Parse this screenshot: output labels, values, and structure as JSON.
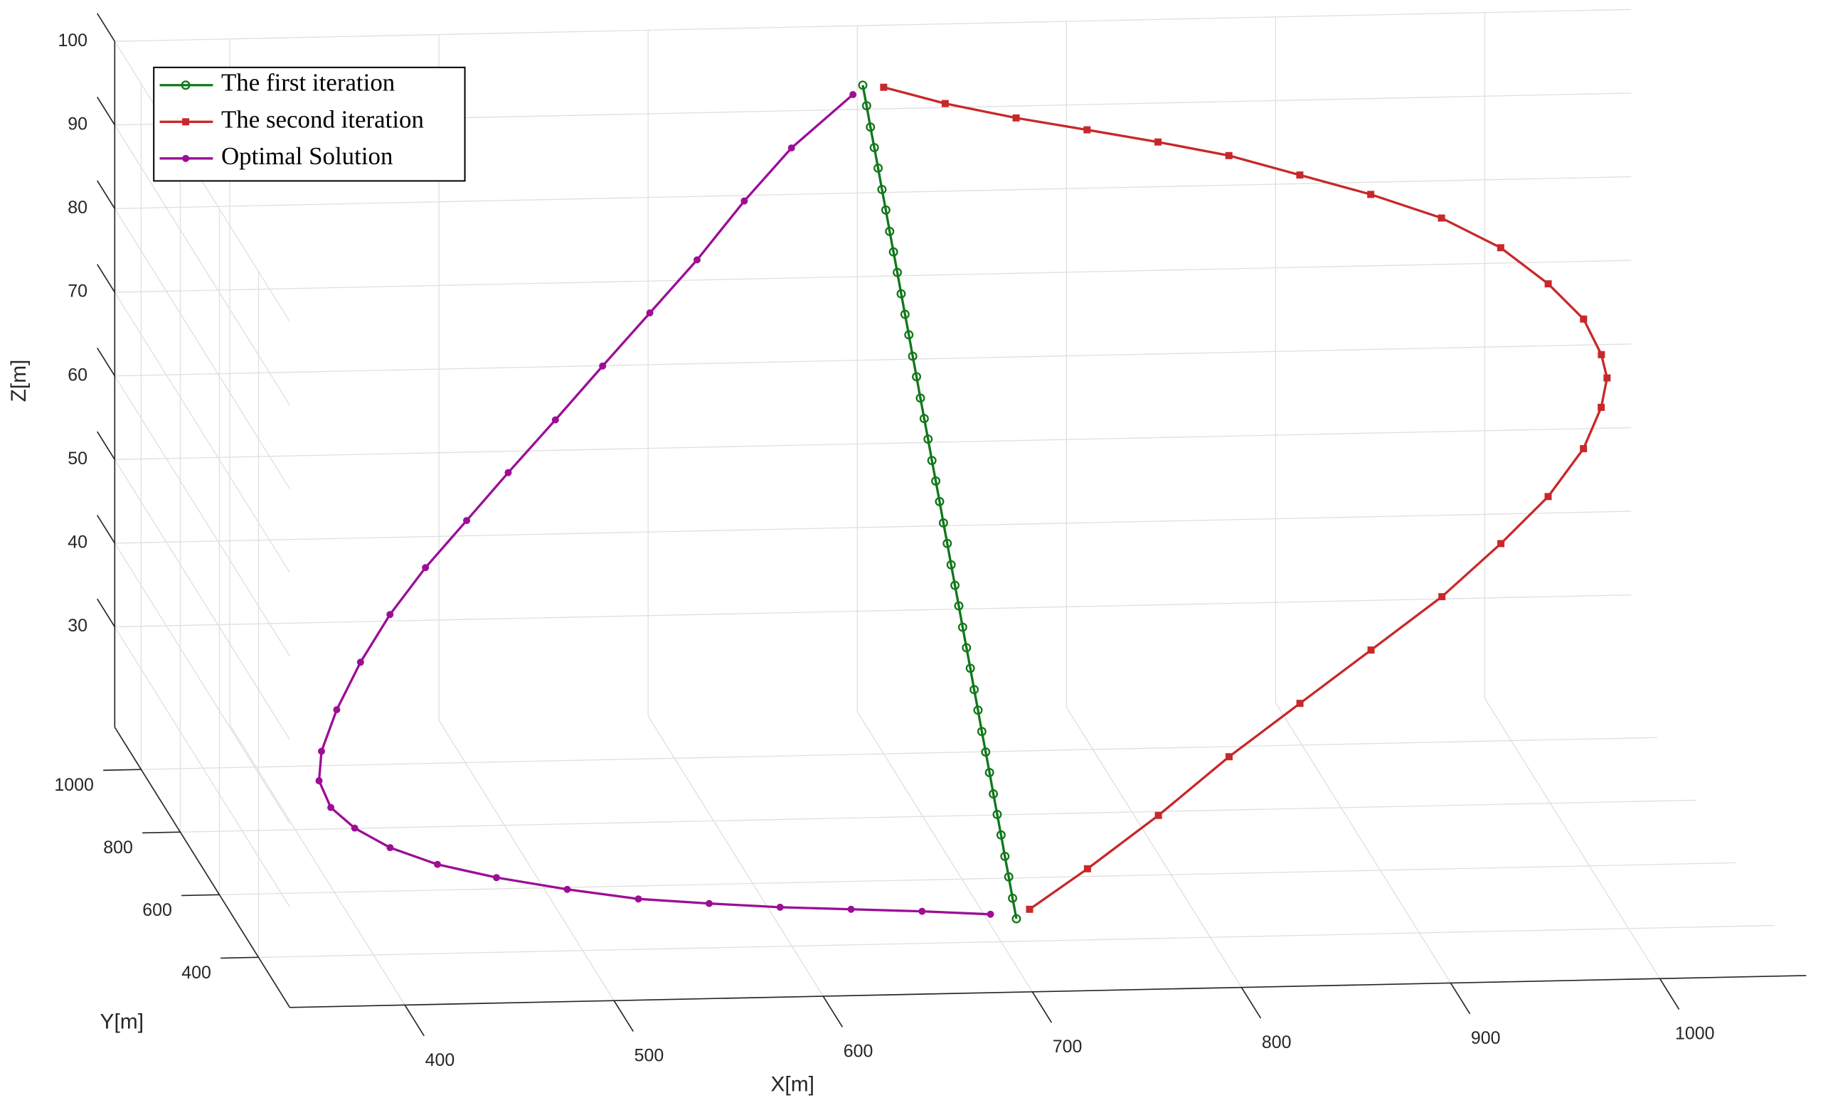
{
  "chart_data": {
    "type": "line3d",
    "xlabel": "X[m]",
    "ylabel": "Y[m]",
    "zlabel": "Z[m]",
    "xlim": [
      345,
      1070
    ],
    "ylim": [
      240,
      1135
    ],
    "zlim": [
      18,
      100
    ],
    "xticks": [
      400,
      500,
      600,
      700,
      800,
      900,
      1000
    ],
    "yticks": [
      400,
      600,
      800,
      1000
    ],
    "zticks": [
      30,
      40,
      50,
      60,
      70,
      80,
      90,
      100
    ],
    "grid": true,
    "legend": "upper left",
    "series": [
      {
        "name": "The first iteration",
        "color": "#11781a",
        "marker": "circle-open",
        "x": [
          690,
          690.2,
          690.4,
          690.6,
          690.8,
          691,
          691.2,
          691.4,
          691.6,
          691.8,
          692,
          692.2,
          692.4,
          692.6,
          692.8,
          693,
          693.2,
          693.4,
          693.6,
          693.8,
          694,
          694.2,
          694.4,
          694.6,
          694.8,
          695,
          695.2,
          695.4,
          695.6,
          695.8,
          696,
          696.2,
          696.4,
          696.6,
          696.8,
          697,
          697.2,
          697.4,
          697.6,
          697.8,
          698
        ],
        "y": [
          1000,
          982.5,
          965,
          947.5,
          930,
          912.5,
          895,
          877.5,
          860,
          842.5,
          825,
          807.5,
          790,
          772.5,
          755,
          737.5,
          720,
          702.5,
          685,
          667.5,
          650,
          632.5,
          615,
          597.5,
          580,
          562.5,
          545,
          527.5,
          510,
          492.5,
          475,
          457.5,
          440,
          422.5,
          405,
          387.5,
          370,
          352.5,
          335,
          317.5,
          300
        ],
        "z": [
          98,
          96.2,
          94.3,
          92.5,
          90.7,
          88.8,
          87,
          85.1,
          83.3,
          81.5,
          79.6,
          77.8,
          76,
          74.1,
          72.3,
          70.4,
          68.6,
          66.8,
          64.9,
          63.1,
          61.3,
          59.4,
          57.6,
          55.7,
          53.9,
          52.1,
          50.2,
          48.4,
          46.6,
          44.7,
          42.9,
          41,
          39.2,
          37.4,
          35.5,
          33.7,
          31.9,
          30,
          28.2,
          26.3,
          24.5
        ]
      },
      {
        "name": "The second iteration",
        "color": "#c8282a",
        "marker": "square",
        "x": [
          700,
          726.7,
          757.9,
          789.1,
          820.2,
          851.4,
          882.6,
          913.8,
          944.9,
          970.5,
          990.4,
          1004.6,
          1010.4,
          1010.4,
          1004.9,
          993.7,
          974,
          948.7,
          917.8,
          881.2,
          844.5,
          807.9,
          771.3,
          734.7,
          704.3
        ],
        "y": [
          1000,
          971,
          942,
          913,
          883,
          854,
          825,
          796,
          767,
          738,
          708,
          679,
          650,
          621,
          592,
          563,
          533,
          504,
          475,
          446,
          417,
          388,
          358,
          329,
          300
        ],
        "z": [
          97.7,
          96.7,
          95.9,
          95.4,
          94.9,
          94.2,
          92.8,
          91.4,
          89.5,
          86.9,
          83.6,
          80.4,
          77.2,
          75.5,
          73.1,
          69.3,
          64.8,
          60.4,
          55.3,
          50.2,
          45.1,
          40,
          34.3,
          29.2,
          25.6
        ]
      },
      {
        "name": "Optimal Solution",
        "color": "#9c0e96",
        "marker": "circle",
        "x": [
          685.6,
          655.4,
          624,
          592.6,
          561.2,
          529.9,
          498.4,
          467,
          441.3,
          421.2,
          406.8,
          397.9,
          394.8,
          398.5,
          408.3,
          422.2,
          438.8,
          458.3,
          480.5,
          502.9,
          527.9,
          553,
          578.1,
          603.2,
          628.3,
          653.4,
          685.3
        ],
        "y": [
          300,
          327,
          354,
          381,
          408,
          435,
          462,
          488,
          515,
          542,
          569,
          596,
          623,
          650,
          677,
          704,
          731,
          758,
          785,
          812,
          838,
          865,
          892,
          919,
          946,
          973,
          1000
        ],
        "z": [
          25.1,
          24.6,
          24,
          23.4,
          23,
          22.7,
          23,
          23.6,
          24.3,
          25.4,
          26.8,
          28.3,
          30.5,
          33,
          36.9,
          41.5,
          46.1,
          50.6,
          55.1,
          59.7,
          64.9,
          70.2,
          75.4,
          80.6,
          86.5,
          91.7,
          96.9
        ]
      }
    ]
  }
}
